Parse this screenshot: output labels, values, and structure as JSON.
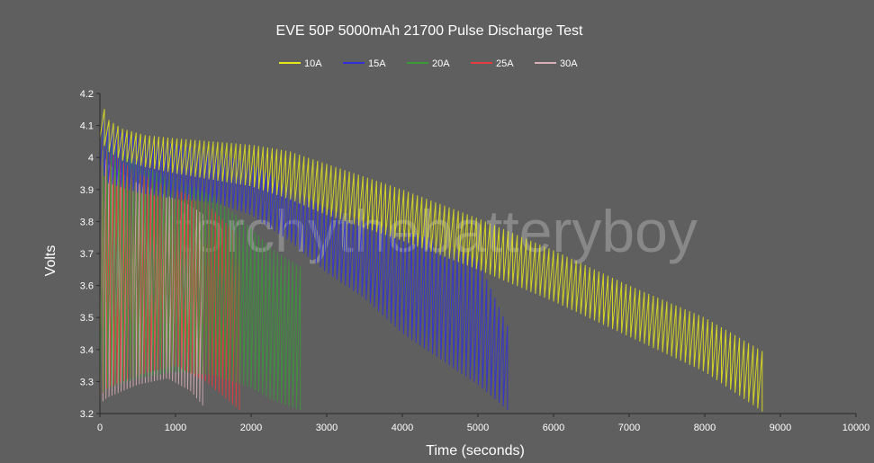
{
  "chart_data": {
    "type": "line",
    "title": "EVE 50P 5000mAh 21700 Pulse Discharge Test",
    "xlabel": "Time (seconds)",
    "ylabel": "Volts",
    "xlim": [
      0,
      10000
    ],
    "ylim": [
      3.2,
      4.2
    ],
    "x_ticks": [
      0,
      1000,
      2000,
      3000,
      4000,
      5000,
      6000,
      7000,
      8000,
      9000,
      10000
    ],
    "y_ticks": [
      3.2,
      3.3,
      3.4,
      3.5,
      3.6,
      3.7,
      3.8,
      3.9,
      4.0,
      4.1,
      4.2
    ],
    "y_tick_labels": [
      "3.2",
      "3.3",
      "3.4",
      "3.5",
      "3.6",
      "3.7",
      "3.8",
      "3.9",
      "4",
      "4.1",
      "4.2"
    ],
    "grid": false,
    "legend_position": "top",
    "watermark": "torchythebatteryboy",
    "series": [
      {
        "name": "10A",
        "color": "#e6e61e",
        "pulse_period": 60,
        "rest_envelope": {
          "x": [
            0,
            100,
            300,
            600,
            1000,
            1500,
            2000,
            2500,
            3000,
            4000,
            5000,
            6000,
            7000,
            8000,
            8800
          ],
          "y": [
            4.2,
            4.12,
            4.09,
            4.07,
            4.06,
            4.05,
            4.04,
            4.02,
            3.98,
            3.9,
            3.81,
            3.71,
            3.6,
            3.5,
            3.39
          ]
        },
        "load_envelope": {
          "x": [
            0,
            100,
            300,
            600,
            1000,
            1500,
            2000,
            2500,
            3000,
            4000,
            5000,
            6000,
            7000,
            8000,
            8800
          ],
          "y": [
            4.06,
            4.02,
            3.99,
            3.97,
            3.95,
            3.93,
            3.91,
            3.87,
            3.82,
            3.74,
            3.65,
            3.55,
            3.44,
            3.33,
            3.2
          ]
        }
      },
      {
        "name": "15A",
        "color": "#2f2fdc",
        "pulse_period": 55,
        "rest_envelope": {
          "x": [
            0,
            100,
            500,
            1000,
            1500,
            2000,
            2500,
            3000,
            3500,
            4000,
            4500,
            5000,
            5400
          ],
          "y": [
            4.15,
            4.1,
            4.06,
            4.04,
            4.02,
            3.98,
            3.91,
            3.84,
            3.8,
            3.77,
            3.74,
            3.68,
            3.47
          ]
        },
        "load_envelope": {
          "x": [
            0,
            100,
            500,
            1000,
            1500,
            2000,
            2500,
            3000,
            3500,
            4000,
            4500,
            5000,
            5400
          ],
          "y": [
            3.97,
            3.92,
            3.89,
            3.87,
            3.86,
            3.82,
            3.74,
            3.64,
            3.56,
            3.45,
            3.37,
            3.29,
            3.21
          ]
        }
      },
      {
        "name": "20A",
        "color": "#3a9a3a",
        "pulse_period": 50,
        "rest_envelope": {
          "x": [
            0,
            100,
            500,
            1000,
            1500,
            2000,
            2300,
            2650
          ],
          "y": [
            4.1,
            4.05,
            3.98,
            3.93,
            3.88,
            3.78,
            3.71,
            3.66
          ]
        },
        "load_envelope": {
          "x": [
            0,
            100,
            500,
            1000,
            1500,
            2000,
            2300,
            2650
          ],
          "y": [
            3.25,
            3.28,
            3.31,
            3.33,
            3.32,
            3.28,
            3.24,
            3.21
          ]
        }
      },
      {
        "name": "25A",
        "color": "#e63c3c",
        "pulse_period": 45,
        "rest_envelope": {
          "x": [
            0,
            100,
            500,
            1000,
            1400,
            1850
          ],
          "y": [
            4.08,
            4.02,
            3.95,
            3.9,
            3.86,
            3.75
          ]
        },
        "load_envelope": {
          "x": [
            0,
            100,
            500,
            1000,
            1400,
            1850
          ],
          "y": [
            3.25,
            3.28,
            3.32,
            3.35,
            3.3,
            3.21
          ]
        }
      },
      {
        "name": "30A",
        "color": "#d8b0b8",
        "pulse_period": 40,
        "rest_envelope": {
          "x": [
            0,
            100,
            500,
            900,
            1200,
            1380
          ],
          "y": [
            4.05,
            3.98,
            3.92,
            3.88,
            3.85,
            3.82
          ]
        },
        "load_envelope": {
          "x": [
            0,
            100,
            500,
            900,
            1200,
            1380
          ],
          "y": [
            3.23,
            3.25,
            3.29,
            3.31,
            3.27,
            3.22
          ]
        }
      }
    ]
  }
}
